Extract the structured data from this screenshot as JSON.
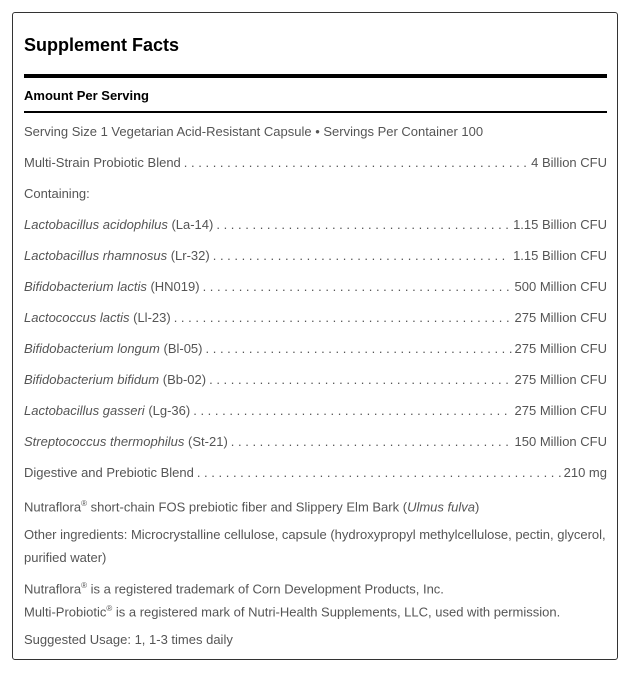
{
  "title": "Supplement Facts",
  "amount_per_serving": "Amount Per Serving",
  "serving_line": "Serving Size 1 Vegetarian Acid-Resistant Capsule • Servings Per Container 100",
  "blend1": {
    "name": "Multi-Strain Probiotic Blend",
    "amount": "4 Billion CFU"
  },
  "containing": "Containing:",
  "strains": [
    {
      "species": "Lactobacillus acidophilus",
      "code": "(La-14)",
      "amount": "1.15 Billion CFU"
    },
    {
      "species": "Lactobacillus rhamnosus",
      "code": "(Lr-32)",
      "amount": "1.15 Billion CFU"
    },
    {
      "species": "Bifidobacterium lactis",
      "code": "(HN019)",
      "amount": "500 Million CFU"
    },
    {
      "species": "Lactococcus lactis",
      "code": "(Ll-23)",
      "amount": "275 Million CFU"
    },
    {
      "species": "Bifidobacterium longum",
      "code": "(Bl-05)",
      "amount": "275 Million CFU"
    },
    {
      "species": "Bifidobacterium bifidum",
      "code": "(Bb-02)",
      "amount": "275 Million CFU"
    },
    {
      "species": "Lactobacillus gasseri",
      "code": "(Lg-36)",
      "amount": "275 Million CFU"
    },
    {
      "species": "Streptococcus thermophilus",
      "code": "(St-21)",
      "amount": "150 Million CFU"
    }
  ],
  "blend2": {
    "name": "Digestive and Prebiotic Blend",
    "amount": "210 mg"
  },
  "blend2_desc": {
    "pre": "Nutraflora",
    "reg": "®",
    "mid": " short-chain FOS prebiotic fiber and Slippery Elm Bark (",
    "latin": "Ulmus fulva",
    "post": ")"
  },
  "other_ingredients": "Other ingredients: Microcrystalline cellulose, capsule (hydroxypropyl methylcellulose, pectin, glycerol, purified water)",
  "trademark1": {
    "name": "Nutraflora",
    "reg": "®",
    "text": " is a registered trademark of Corn Development Products, Inc."
  },
  "trademark2": {
    "name": "Multi-Probiotic",
    "reg": "®",
    "text": " is a registered mark of Nutri-Health Supplements, LLC, used with permission."
  },
  "suggested_usage": "Suggested Usage: 1, 1-3 times daily"
}
